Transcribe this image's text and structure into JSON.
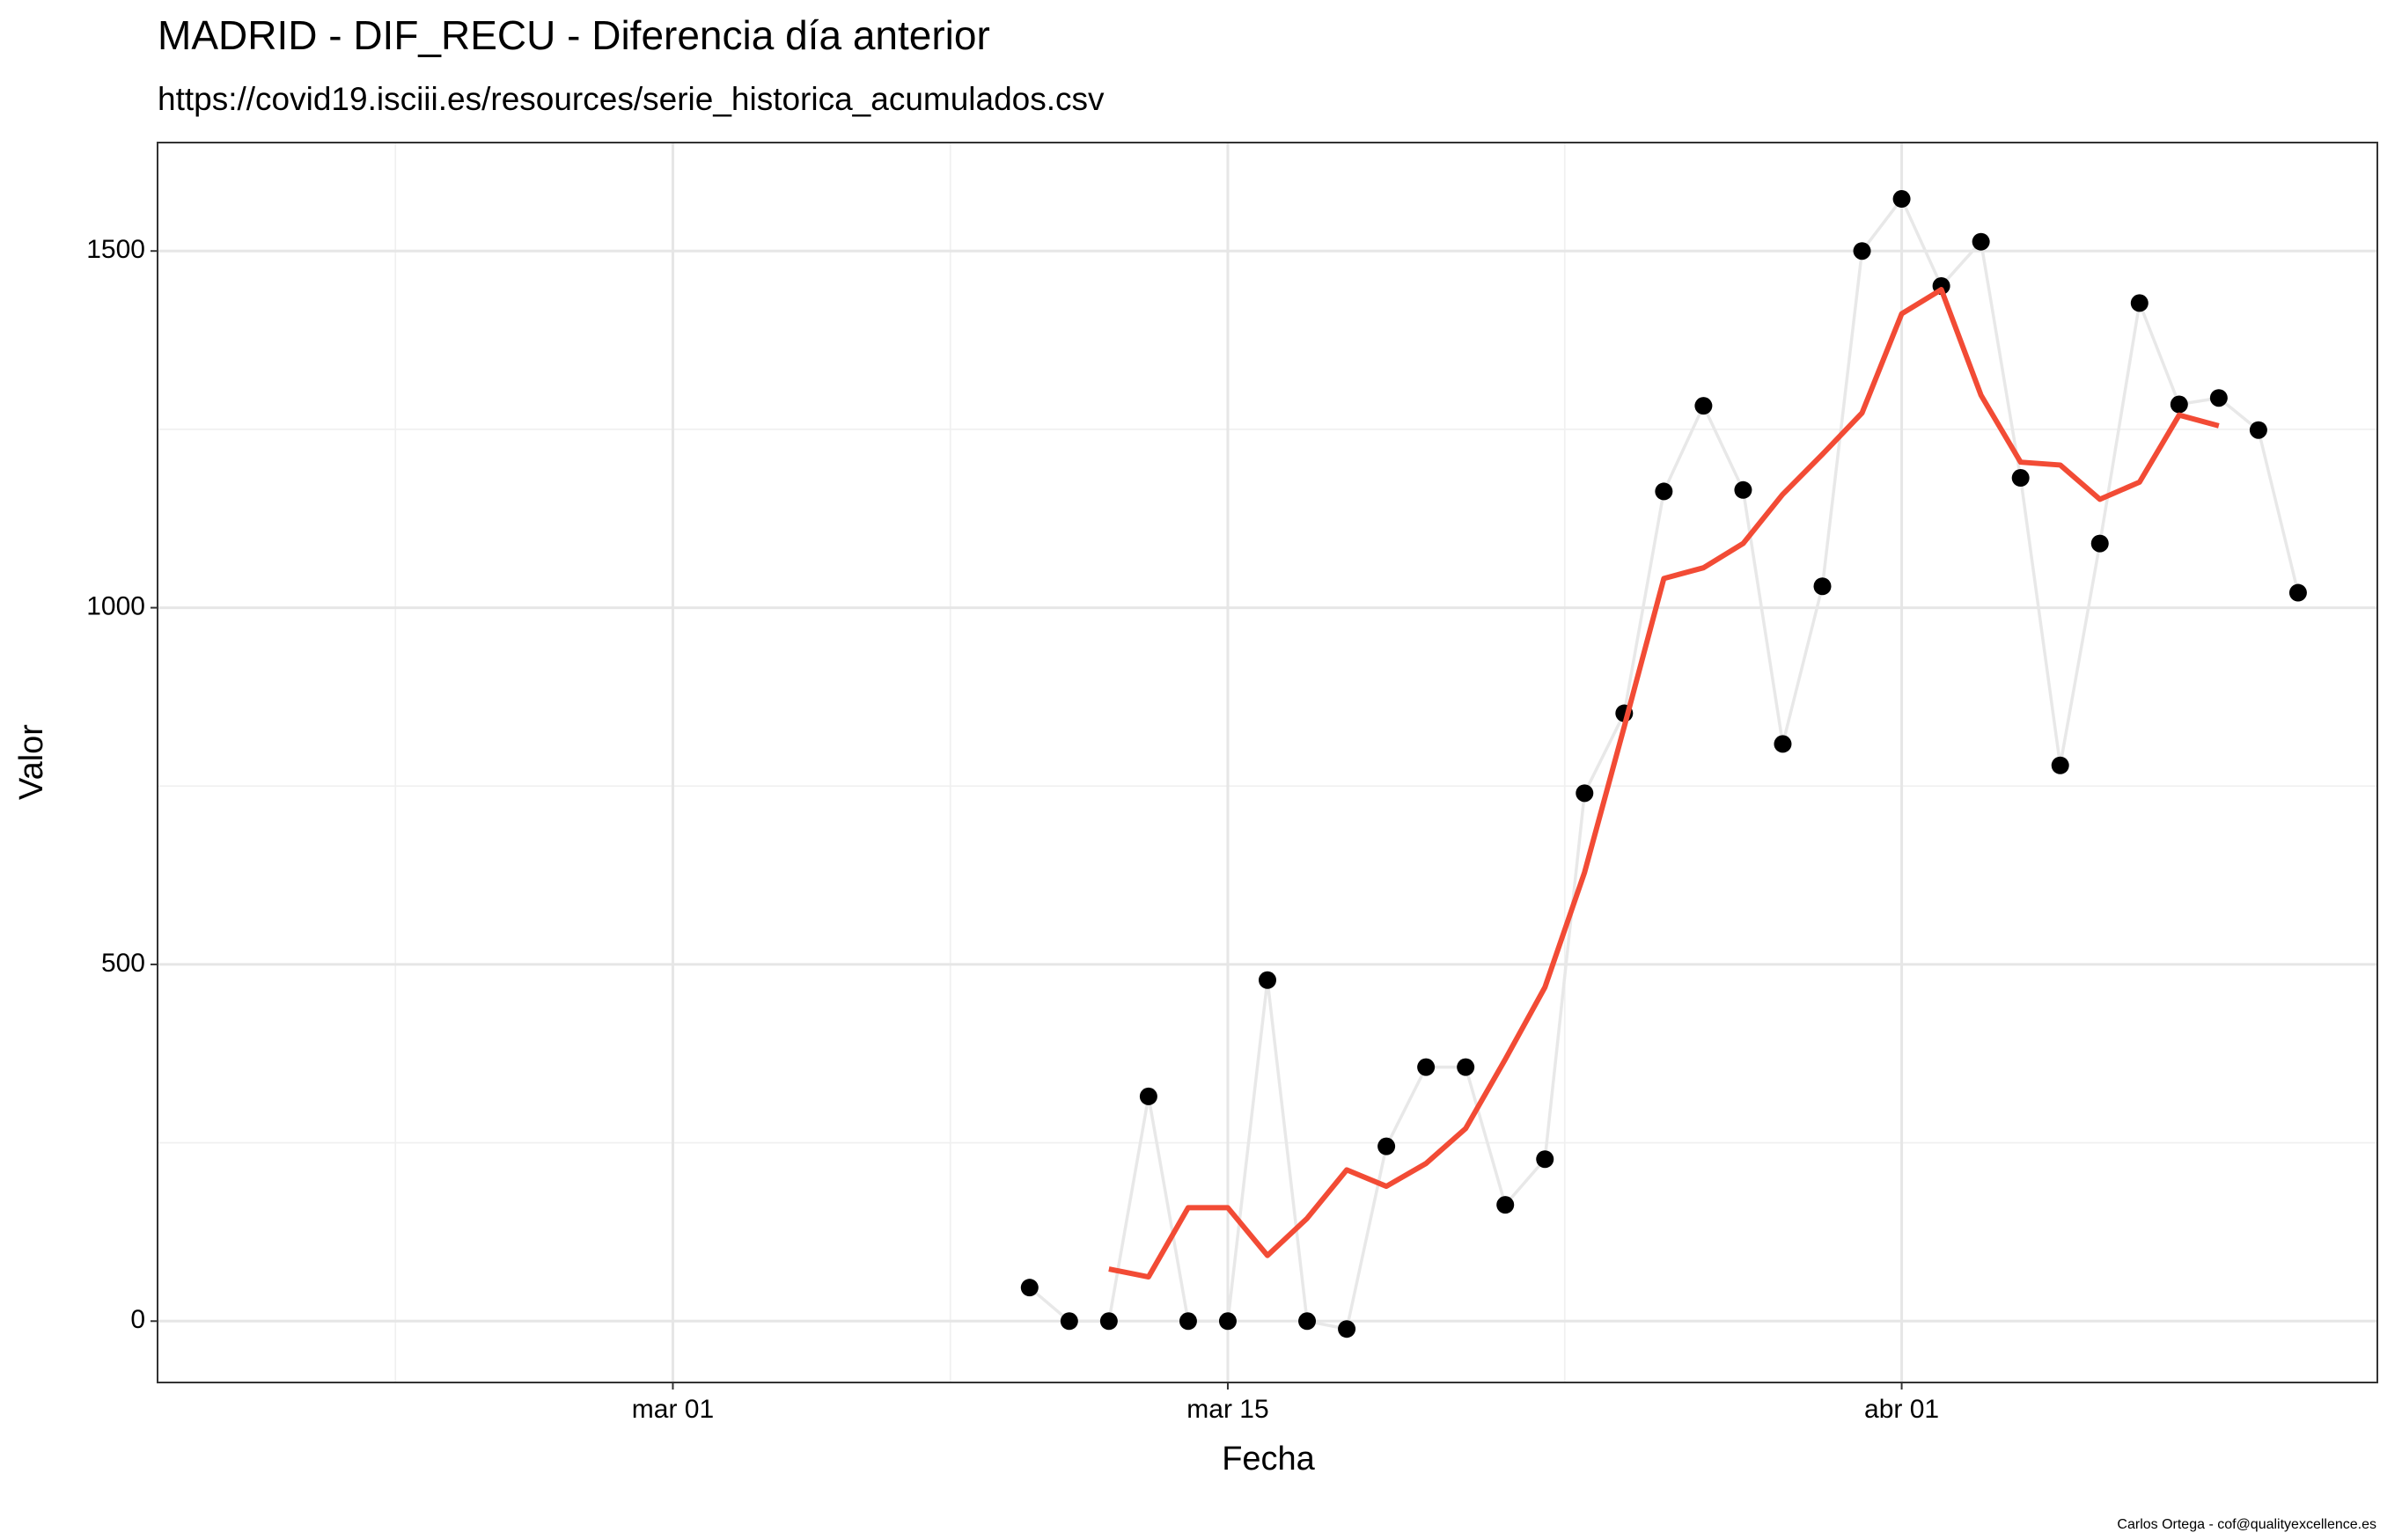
{
  "chart_data": {
    "type": "line",
    "title": "MADRID - DIF_RECU - Diferencia día anterior",
    "subtitle": "https://covid19.isciii.es/resources/serie_historica_acumulados.csv",
    "x_label": "Fecha",
    "y_label": "Valor",
    "caption": "Carlos Ortega - cof@qualityexcellence.es",
    "x": [
      "03-10",
      "03-11",
      "03-12",
      "03-13",
      "03-14",
      "03-15",
      "03-16",
      "03-17",
      "03-18",
      "03-19",
      "03-20",
      "03-21",
      "03-22",
      "03-23",
      "03-24",
      "03-25",
      "03-26",
      "03-27",
      "03-28",
      "03-29",
      "03-30",
      "03-31",
      "04-01",
      "04-02",
      "04-03",
      "04-04",
      "04-05",
      "04-06",
      "04-07",
      "04-08",
      "04-09",
      "04-10",
      "04-11"
    ],
    "series": [
      {
        "color": "#000000",
        "line_color": "#e8e8e8",
        "values": [
          47,
          0,
          0,
          315,
          0,
          0,
          478,
          0,
          -11,
          245,
          356,
          356,
          163,
          227,
          740,
          852,
          1163,
          1283,
          1165,
          809,
          1030,
          1500,
          1573,
          1451,
          1513,
          1182,
          779,
          1090,
          1427,
          1285,
          1294,
          1249,
          1021
        ]
      },
      {
        "color": "#f24b35",
        "values": [
          null,
          null,
          73,
          62,
          159,
          159,
          92,
          144,
          212,
          189,
          221,
          270,
          367,
          468,
          629,
          833,
          1041,
          1056,
          1090,
          1159,
          1215,
          1273,
          1412,
          1446,
          1298,
          1204,
          1200,
          1152,
          1176,
          1270,
          1255,
          null,
          null
        ]
      }
    ],
    "xlim": [
      "02-17",
      "04-13"
    ],
    "xticks": [
      {
        "value": "03-01",
        "label": "mar 01"
      },
      {
        "value": "03-15",
        "label": "mar 15"
      },
      {
        "value": "04-01",
        "label": "abr 01"
      }
    ],
    "ylim": [
      -86,
      1652
    ],
    "yticks": [
      0,
      500,
      1000,
      1500
    ],
    "grid": true
  }
}
